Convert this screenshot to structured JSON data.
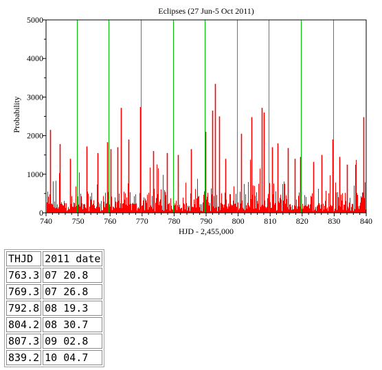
{
  "chart_data": {
    "type": "bar",
    "title": "Eclipses (27 Jun-5 Oct 2011)",
    "xlabel": "HJD - 2,455,000",
    "ylabel": "Probability",
    "xlim": [
      740,
      840
    ],
    "ylim": [
      0,
      5000
    ],
    "xticks": [
      "740",
      "750",
      "760",
      "770",
      "780",
      "790",
      "800",
      "810",
      "820",
      "830",
      "840"
    ],
    "yticks": [
      "0",
      "1000",
      "2000",
      "3000",
      "4000",
      "5000"
    ],
    "grid": false,
    "legend": "none",
    "colors": {
      "bars": "#ff0000",
      "markers": "#00c000",
      "axes": "#000000"
    },
    "vertical_markers": [
      749.7,
      759.6,
      769.6,
      779.6,
      789.6,
      799.6,
      809.6,
      819.6,
      829.6
    ],
    "peaks": [
      {
        "x": 741.2,
        "y": 2150
      },
      {
        "x": 744.3,
        "y": 1780
      },
      {
        "x": 747.5,
        "y": 1400
      },
      {
        "x": 752.6,
        "y": 1720
      },
      {
        "x": 756.0,
        "y": 1550
      },
      {
        "x": 759.2,
        "y": 1830
      },
      {
        "x": 760.2,
        "y": 1650
      },
      {
        "x": 762.3,
        "y": 1700
      },
      {
        "x": 763.3,
        "y": 2720
      },
      {
        "x": 765.8,
        "y": 1900
      },
      {
        "x": 769.3,
        "y": 2740
      },
      {
        "x": 773.4,
        "y": 1600
      },
      {
        "x": 777.7,
        "y": 1550
      },
      {
        "x": 781.3,
        "y": 1500
      },
      {
        "x": 785.3,
        "y": 1650
      },
      {
        "x": 789.8,
        "y": 2100
      },
      {
        "x": 792.0,
        "y": 2650
      },
      {
        "x": 792.8,
        "y": 3340
      },
      {
        "x": 794.0,
        "y": 2500
      },
      {
        "x": 796.0,
        "y": 1400
      },
      {
        "x": 800.9,
        "y": 2050
      },
      {
        "x": 804.2,
        "y": 2480
      },
      {
        "x": 807.3,
        "y": 2720
      },
      {
        "x": 808.0,
        "y": 2600
      },
      {
        "x": 810.5,
        "y": 1700
      },
      {
        "x": 812.4,
        "y": 1800
      },
      {
        "x": 815.5,
        "y": 1680
      },
      {
        "x": 817.7,
        "y": 1400
      },
      {
        "x": 819.5,
        "y": 1450
      },
      {
        "x": 823.4,
        "y": 1320
      },
      {
        "x": 826.0,
        "y": 1500
      },
      {
        "x": 829.4,
        "y": 1900
      },
      {
        "x": 831.6,
        "y": 1450
      },
      {
        "x": 834.0,
        "y": 1250
      },
      {
        "x": 839.2,
        "y": 2480
      }
    ]
  },
  "table": {
    "header": [
      "THJD",
      "2011 date"
    ],
    "rows": [
      [
        "763.3",
        "07 20.8"
      ],
      [
        "769.3",
        "07 26.8"
      ],
      [
        "792.8",
        "08 19.3"
      ],
      [
        "804.2",
        "08 30.7"
      ],
      [
        "807.3",
        "09 02.8"
      ],
      [
        "839.2",
        "10 04.7"
      ]
    ]
  }
}
